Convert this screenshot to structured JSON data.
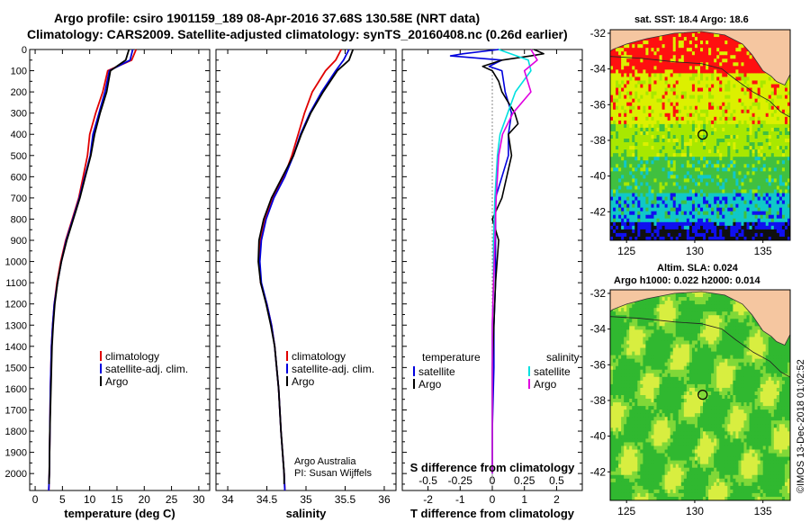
{
  "titles": {
    "line1": "Argo profile: csiro 1901159_189 08-Apr-2016 37.68S 130.58E (NRT data)",
    "line2": "Climatology: CARS2009. Satellite-adjusted climatology: synTS_20160408.nc (0.26d earlier)"
  },
  "colors": {
    "climatology": "#e00000",
    "satellite": "#0000dd",
    "argo": "#000000",
    "sal_satellite": "#00e0e0",
    "sal_argo": "#e000e0",
    "land": "#f5c6a0"
  },
  "credit": {
    "line1": "Argo Australia",
    "line2": "PI: Susan Wijffels"
  },
  "stamp": "©IMOS 13-Dec-2018 01:02:52",
  "maps": {
    "sst_title": "sat. SST: 18.4 Argo: 18.6",
    "sla_title1": "Altim. SLA: 0.024",
    "sla_title2": "Argo h1000: 0.022 h2000: 0.014",
    "yticks": [
      "-32",
      "-34",
      "-36",
      "-38",
      "-40",
      "-42"
    ],
    "xticks": [
      "125",
      "130",
      "135"
    ],
    "float_lon": 130.58,
    "float_lat": -37.68
  },
  "chart_data": [
    {
      "type": "line",
      "name": "temperature",
      "xlabel": "temperature (deg C)",
      "ylabel": "",
      "xlim": [
        -1,
        32
      ],
      "ylim": [
        2080,
        0
      ],
      "xticks": [
        "0",
        "5",
        "10",
        "15",
        "20",
        "25",
        "30"
      ],
      "yticks": [
        "0",
        "100",
        "200",
        "300",
        "400",
        "500",
        "600",
        "700",
        "800",
        "900",
        "1000",
        "1100",
        "1200",
        "1300",
        "1400",
        "1500",
        "1600",
        "1700",
        "1800",
        "1900",
        "2000"
      ],
      "legend": [
        "climatology",
        "satellite-adj. clim.",
        "Argo"
      ],
      "series": [
        {
          "name": "climatology",
          "depth": [
            0,
            50,
            100,
            200,
            300,
            400,
            500,
            600,
            700,
            800,
            900,
            1000,
            1100,
            1200,
            1300,
            1400,
            1500,
            1600,
            1800,
            2000,
            2080
          ],
          "values": [
            18.5,
            17.7,
            13.3,
            12.4,
            11.1,
            10.0,
            9.6,
            8.8,
            8.0,
            6.8,
            5.6,
            4.7,
            4.0,
            3.5,
            3.2,
            3.0,
            2.9,
            2.8,
            2.7,
            2.6,
            2.5
          ]
        },
        {
          "name": "satellite-adj. clim.",
          "depth": [
            0,
            50,
            100,
            200,
            300,
            400,
            500,
            600,
            700,
            800,
            900,
            1000,
            1100,
            1200,
            1300,
            1400,
            1500,
            1600,
            1800,
            2000,
            2080
          ],
          "values": [
            17.9,
            17.4,
            13.6,
            12.8,
            11.7,
            10.6,
            10.1,
            9.1,
            8.1,
            6.9,
            5.7,
            4.8,
            4.1,
            3.5,
            3.2,
            3.0,
            2.9,
            2.8,
            2.7,
            2.6,
            2.5
          ]
        },
        {
          "name": "Argo",
          "depth": [
            0,
            50,
            100,
            200,
            300,
            400,
            500,
            600,
            700,
            800,
            900,
            1000,
            1100,
            1200,
            1300,
            1400,
            1500,
            1600,
            1800,
            2000,
            2050
          ],
          "values": [
            17.2,
            16.6,
            13.8,
            13.1,
            11.9,
            10.9,
            10.2,
            9.2,
            8.2,
            7.0,
            5.8,
            4.8,
            4.1,
            3.6,
            3.3,
            3.1,
            3.0,
            2.9,
            2.7,
            2.6,
            2.55
          ]
        }
      ]
    },
    {
      "type": "line",
      "name": "salinity",
      "xlabel": "salinity",
      "ylabel": "",
      "xlim": [
        33.85,
        36.15
      ],
      "ylim": [
        2080,
        0
      ],
      "xticks": [
        "34",
        "34.5",
        "35",
        "35.5",
        "36"
      ],
      "legend": [
        "climatology",
        "satellite-adj. clim.",
        "Argo"
      ],
      "series": [
        {
          "name": "climatology",
          "depth": [
            0,
            50,
            100,
            200,
            300,
            400,
            500,
            600,
            700,
            800,
            900,
            1000,
            1100,
            1200,
            1300,
            1400,
            1600,
            1800,
            2000,
            2080
          ],
          "values": [
            35.45,
            35.38,
            35.25,
            35.08,
            34.98,
            34.9,
            34.82,
            34.72,
            34.58,
            34.48,
            34.42,
            34.4,
            34.42,
            34.5,
            34.56,
            34.6,
            34.65,
            34.68,
            34.72,
            34.73
          ]
        },
        {
          "name": "satellite-adj. clim.",
          "depth": [
            0,
            50,
            100,
            200,
            300,
            400,
            500,
            600,
            700,
            800,
            900,
            1000,
            1100,
            1200,
            1300,
            1400,
            1600,
            1800,
            2000,
            2080
          ],
          "values": [
            35.55,
            35.48,
            35.38,
            35.2,
            35.05,
            34.93,
            34.84,
            34.73,
            34.59,
            34.49,
            34.43,
            34.41,
            34.43,
            34.5,
            34.56,
            34.6,
            34.65,
            34.68,
            34.72,
            34.73
          ]
        },
        {
          "name": "Argo",
          "depth": [
            0,
            50,
            100,
            200,
            300,
            400,
            500,
            600,
            700,
            800,
            900,
            1000,
            1100,
            1200,
            1300,
            1400,
            1600,
            1800,
            2000,
            2050
          ],
          "values": [
            35.6,
            35.55,
            35.4,
            35.22,
            35.06,
            34.94,
            34.84,
            34.7,
            34.56,
            34.46,
            34.4,
            34.39,
            34.42,
            34.49,
            34.55,
            34.6,
            34.65,
            34.68,
            34.72,
            34.72
          ]
        }
      ]
    },
    {
      "type": "line",
      "name": "differences",
      "xlabel": "T difference from climatology",
      "xlabel2": "S difference from climatology",
      "xlim": [
        -2.8,
        2.8
      ],
      "xticks": [
        "-2",
        "-1",
        "0",
        "1",
        "2"
      ],
      "xticks2": [
        "-0.5",
        "-0.25",
        "0",
        "0.25",
        "0.5"
      ],
      "ylim": [
        2080,
        0
      ],
      "legend_temperature": {
        "title": "temperature",
        "items": [
          "satellite",
          "Argo"
        ]
      },
      "legend_salinity": {
        "title": "salinity",
        "items": [
          "satellite",
          "Argo"
        ]
      },
      "series": [
        {
          "name": "T satellite",
          "depth": [
            0,
            20,
            30,
            50,
            80,
            100,
            200,
            300,
            400,
            500,
            700,
            900,
            1100,
            1300,
            1500,
            1800,
            2000
          ],
          "values": [
            0.2,
            -0.9,
            -1.3,
            0.3,
            -0.1,
            0.3,
            0.4,
            0.6,
            0.5,
            0.5,
            0.1,
            0.1,
            0.1,
            0.05,
            0.05,
            0.0,
            0.0
          ]
        },
        {
          "name": "T Argo",
          "depth": [
            0,
            20,
            30,
            50,
            80,
            100,
            150,
            200,
            300,
            350,
            400,
            500,
            700,
            800,
            900,
            1100,
            1300,
            1500,
            1800,
            2000
          ],
          "values": [
            1.3,
            1.6,
            1.2,
            0.3,
            -0.3,
            0.0,
            0.2,
            0.3,
            0.7,
            0.8,
            0.5,
            0.6,
            0.3,
            0.0,
            0.2,
            0.1,
            0.05,
            0.0,
            0.0,
            0.0
          ]
        },
        {
          "name": "S satellite",
          "depth": [
            0,
            50,
            100,
            200,
            300,
            400,
            500,
            700,
            900,
            1100,
            1300,
            1500,
            1800,
            2000
          ],
          "values": [
            0.05,
            0.28,
            0.3,
            0.18,
            0.12,
            0.06,
            0.04,
            0.02,
            0.01,
            0.01,
            0.0,
            0.0,
            0.0,
            0.0
          ]
        },
        {
          "name": "S Argo",
          "depth": [
            0,
            50,
            100,
            200,
            300,
            400,
            500,
            700,
            900,
            1100,
            1300,
            1500,
            1800,
            2000
          ],
          "values": [
            0.3,
            0.35,
            0.25,
            0.3,
            0.16,
            0.08,
            0.05,
            0.03,
            0.02,
            0.01,
            0.0,
            0.0,
            0.0,
            0.0
          ]
        }
      ]
    }
  ]
}
